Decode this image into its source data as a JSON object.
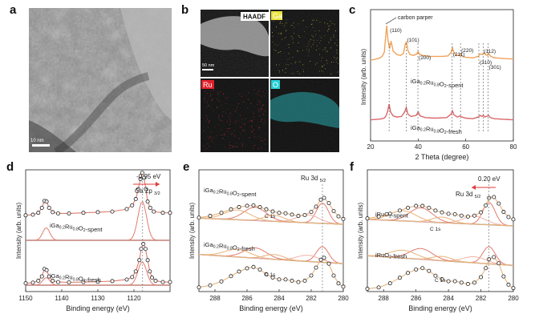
{
  "figure": {
    "panel_letters": [
      "a",
      "b",
      "c",
      "d",
      "e",
      "f"
    ],
    "tem": {
      "scale_bar": "10 nm"
    },
    "eds": {
      "tiles": [
        {
          "label": "HAADF",
          "scale_bar": "50 nm",
          "color": "#dddddd"
        },
        {
          "label": "Ga",
          "color": "#d8d23a"
        },
        {
          "label": "Ru",
          "color": "#e0303a"
        },
        {
          "label": "O",
          "color": "#26d3d8"
        }
      ]
    }
  },
  "colors": {
    "spent": "#f0a35a",
    "fresh": "#d9686a",
    "background_line": "#8a8a8a",
    "fit_orange": "#e8b47c",
    "fit_red": "#e07c6e",
    "fit_pink": "#efb3a8",
    "arrow": "#e03a3a",
    "axis": "#222222"
  },
  "chart_data": [
    {
      "panel": "c",
      "type": "line",
      "xlabel": "2 Theta (degree)",
      "ylabel": "Intensity (arb. units)",
      "xlim": [
        20,
        80
      ],
      "xticks": [
        20,
        40,
        60,
        80
      ],
      "annotations": {
        "carbon_paper": "carbon parper",
        "peaks": [
          {
            "label": "(110)",
            "x": 27.8
          },
          {
            "label": "(101)",
            "x": 35.0
          },
          {
            "label": "(200)",
            "x": 39.9
          },
          {
            "label": "(211)",
            "x": 54.3
          },
          {
            "label": "(220)",
            "x": 57.8
          },
          {
            "label": "(310)",
            "x": 65.5
          },
          {
            "label": "(112)",
            "x": 67.3
          },
          {
            "label": "(301)",
            "x": 69.4
          }
        ]
      },
      "series": [
        {
          "name": "iGa0.2Ru0.8O2-spent",
          "name_parts": {
            "pre": "iGa",
            "s1": "0.2",
            "mid": "Ru",
            "s2": "0.8",
            "post": "O",
            "s3": "2",
            "tail": "-spent"
          },
          "x": [
            20,
            22,
            24,
            25,
            25.8,
            26.3,
            26.8,
            27.3,
            28,
            28.6,
            29.5,
            31,
            32.5,
            33.8,
            34.6,
            35.1,
            35.7,
            36.6,
            38,
            39.4,
            40,
            40.7,
            42,
            45,
            50,
            52.5,
            53.8,
            54.4,
            55,
            56,
            57.2,
            57.9,
            58.6,
            60,
            63,
            65.3,
            66,
            67.1,
            67.6,
            68.3,
            69.2,
            69.6,
            70.5,
            72,
            75,
            78,
            80
          ],
          "y": [
            28,
            30,
            33,
            37,
            45,
            75,
            100,
            70,
            52,
            68,
            47,
            40,
            38,
            42,
            62,
            66,
            48,
            40,
            38,
            41,
            46,
            40,
            38,
            36,
            36,
            37,
            44,
            54,
            44,
            38,
            38,
            41,
            36,
            34,
            33,
            36,
            41,
            40,
            44,
            40,
            38,
            42,
            36,
            33,
            32,
            31,
            31
          ]
        },
        {
          "name": "iGa0.2Ru0.8O2-fresh",
          "name_parts": {
            "pre": "iGa",
            "s1": "0.2",
            "mid": "Ru",
            "s2": "0.8",
            "post": "O",
            "s3": "2",
            "tail": "-fresh"
          },
          "x": [
            20,
            23,
            25,
            26,
            26.6,
            27.2,
            27.8,
            28.4,
            29.5,
            31,
            33,
            34.3,
            35,
            35.7,
            37,
            39.2,
            40,
            40.8,
            43,
            47,
            52,
            53.8,
            54.4,
            55,
            56.5,
            57.6,
            58.4,
            60,
            63,
            65.3,
            66,
            66.8,
            67.4,
            68,
            69.2,
            69.6,
            70.3,
            72,
            76,
            80
          ],
          "y": [
            6,
            6.5,
            7,
            8,
            10,
            14,
            20,
            13,
            9.5,
            8.5,
            9,
            13,
            17,
            11,
            9,
            10,
            13,
            9.5,
            8,
            7.5,
            8,
            11,
            14,
            10.5,
            8.5,
            9.5,
            8.5,
            7.5,
            7,
            8.5,
            10,
            9,
            10,
            8.5,
            9.5,
            10,
            8,
            7,
            6.5,
            6
          ]
        }
      ]
    },
    {
      "panel": "d",
      "type": "line",
      "xlabel": "Binding energy (eV)",
      "ylabel": "Intensity (arb. units)",
      "xlim": [
        1150,
        1110
      ],
      "xticks": [
        1150,
        1140,
        1130,
        1120
      ],
      "annotations": {
        "shift": "-0.95 eV",
        "peak_main": "Ga 2p",
        "peak_sub": "3/2",
        "peak_position_eV": 1117.6
      },
      "series": [
        {
          "name": "iGa0.2Ru0.8O2-spent",
          "name_parts": {
            "pre": "iGa",
            "s1": "0.2",
            "mid": "Ru",
            "s2": "0.8",
            "post": "O",
            "s3": "2",
            "tail": "-spent"
          },
          "x": [
            1150,
            1148,
            1146.5,
            1145.5,
            1144.8,
            1144.2,
            1143.5,
            1142.5,
            1141,
            1138,
            1134,
            1130,
            1126,
            1122,
            1120.5,
            1119.5,
            1118.8,
            1118.2,
            1117.7,
            1117.2,
            1116.7,
            1116.2,
            1115.5,
            1114.5,
            1112,
            1110
          ],
          "y": [
            40,
            41,
            44,
            52,
            63,
            62,
            52,
            45,
            43,
            43,
            44,
            45,
            46,
            50,
            56,
            66,
            82,
            98,
            108,
            100,
            82,
            62,
            52,
            46,
            44,
            44
          ]
        },
        {
          "name": "iGa0.2Ru0.8O2-fresh",
          "name_parts": {
            "pre": "iGa",
            "s1": "0.2",
            "mid": "Ru",
            "s2": "0.8",
            "post": "O",
            "s3": "2",
            "tail": "-fresh"
          },
          "x": [
            1150,
            1148,
            1146.5,
            1145.5,
            1144.8,
            1144.2,
            1143.5,
            1142.5,
            1141,
            1138,
            1134,
            1130,
            1126,
            1122,
            1120.5,
            1119.5,
            1118.5,
            1118,
            1117.4,
            1116.8,
            1116.2,
            1115.6,
            1115,
            1114,
            1112,
            1110
          ],
          "y": [
            3,
            4,
            7,
            14,
            26,
            24,
            14,
            7,
            5,
            4.5,
            5,
            5.5,
            6.5,
            9,
            13,
            22,
            40,
            58,
            66,
            58,
            40,
            22,
            12,
            7,
            5,
            5
          ]
        }
      ]
    },
    {
      "panel": "e",
      "type": "line",
      "xlabel": "Binding energy (eV)",
      "ylabel": "Intensity (arb. units)",
      "xlim": [
        289,
        280
      ],
      "xticks": [
        288,
        286,
        284,
        282,
        280
      ],
      "annotations": {
        "peak_main": "Ru 3d",
        "peak_sub": "5/2",
        "c1s": "C 1s",
        "peak_position_eV": 281.3
      },
      "series": [
        {
          "name": "iGa0.2Ru0.8O2-spent",
          "name_parts": {
            "pre": "iGa",
            "s1": "0.2",
            "mid": "Ru",
            "s2": "0.8",
            "post": "O",
            "s3": "2",
            "tail": "-spent"
          },
          "x": [
            289,
            288.3,
            287.6,
            287,
            286.5,
            286,
            285.6,
            285.2,
            284.8,
            284.4,
            284,
            283.6,
            283.2,
            282.8,
            282.4,
            282,
            281.7,
            281.4,
            281.2,
            280.9,
            280.6,
            280.3,
            280
          ],
          "y": [
            55,
            59,
            66,
            74,
            79,
            82,
            83,
            79,
            74,
            69,
            66,
            65,
            62,
            59,
            61,
            68,
            80,
            96,
            100,
            88,
            70,
            58,
            52
          ]
        },
        {
          "name": "iGa0.2Ru0.8O2-fresh",
          "name_parts": {
            "pre": "iGa",
            "s1": "0.2",
            "mid": "Ru",
            "s2": "0.8",
            "post": "O",
            "s3": "2",
            "tail": "-fresh"
          },
          "x": [
            289,
            288.3,
            287.6,
            287,
            286.5,
            286,
            285.6,
            285.2,
            284.8,
            284.4,
            284,
            283.6,
            283.2,
            282.8,
            282.4,
            282,
            281.7,
            281.4,
            281.2,
            280.9,
            280.6,
            280.3,
            280
          ],
          "y": [
            4,
            7,
            13,
            21,
            28,
            33,
            35,
            31,
            24,
            19,
            16,
            16,
            14,
            12,
            14,
            22,
            34,
            46,
            49,
            40,
            22,
            10,
            5
          ]
        }
      ]
    },
    {
      "panel": "f",
      "type": "line",
      "xlabel": "Binding energy (eV)",
      "ylabel": "Intensity (arb. units)",
      "xlim": [
        289,
        280
      ],
      "xticks": [
        288,
        286,
        284,
        282,
        280
      ],
      "annotations": {
        "shift": "0.20 eV",
        "peak_main": "Ru 3d",
        "peak_sub": "5/2",
        "c1s": "C 1s",
        "peak_position_eV": 281.5
      },
      "series": [
        {
          "name": "iRuO2-spent",
          "name_parts": {
            "pre": "iRuO",
            "s1": "2",
            "tail": "-spent"
          },
          "x": [
            289,
            288.3,
            287.6,
            287,
            286.5,
            286,
            285.6,
            285.2,
            284.8,
            284.4,
            284,
            283.6,
            283.2,
            282.8,
            282.4,
            282,
            281.7,
            281.5,
            281.2,
            280.9,
            280.6,
            280.3,
            280
          ],
          "y": [
            54,
            58,
            64,
            71,
            77,
            81,
            81,
            77,
            71,
            67,
            64,
            63,
            60,
            58,
            60,
            67,
            82,
            98,
            100,
            86,
            68,
            57,
            52
          ]
        },
        {
          "name": "iRuO2-fresh",
          "name_parts": {
            "pre": "iRuO",
            "s1": "2",
            "tail": "-fresh"
          },
          "x": [
            289,
            288.3,
            287.6,
            287,
            286.5,
            286,
            285.6,
            285.2,
            284.8,
            284.4,
            284,
            283.6,
            283.2,
            282.8,
            282.4,
            282,
            281.7,
            281.5,
            281.2,
            280.9,
            280.6,
            280.3,
            280
          ],
          "y": [
            4,
            6,
            12,
            20,
            27,
            32,
            34,
            30,
            23,
            18,
            15,
            15,
            13,
            11,
            13,
            21,
            34,
            47,
            50,
            41,
            22,
            10,
            5
          ]
        }
      ]
    }
  ]
}
